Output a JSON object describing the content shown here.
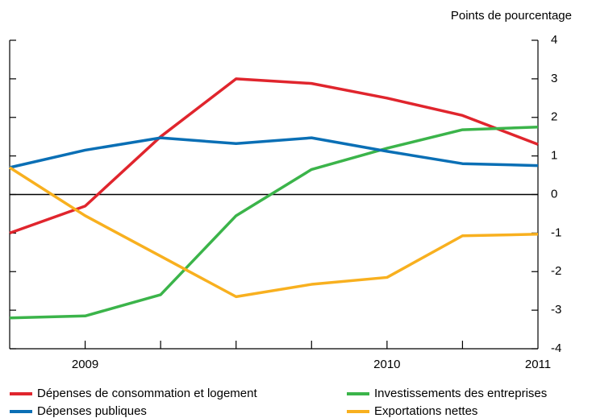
{
  "chart_data": {
    "type": "line",
    "y_axis_label": "Points de pourcentage",
    "categories": [
      null,
      "2009",
      null,
      null,
      null,
      "2010",
      null,
      "2011"
    ],
    "series": [
      {
        "name": "Dépenses de consommation et logement",
        "color": "#e0252d",
        "values": [
          -1.0,
          -0.3,
          1.5,
          3.0,
          2.88,
          2.5,
          2.05,
          1.3
        ]
      },
      {
        "name": "Investissements des entreprises",
        "color": "#3bb44a",
        "values": [
          -3.2,
          -3.15,
          -2.6,
          -0.55,
          0.65,
          1.2,
          1.68,
          1.75
        ]
      },
      {
        "name": "Dépenses publiques",
        "color": "#0a6fb5",
        "values": [
          0.7,
          1.15,
          1.47,
          1.32,
          1.47,
          1.12,
          0.8,
          0.75
        ]
      },
      {
        "name": "Exportations nettes",
        "color": "#f8b01f",
        "values": [
          0.7,
          -0.55,
          -1.6,
          -2.65,
          -2.33,
          -2.15,
          -1.07,
          -1.03
        ]
      }
    ],
    "ylim": [
      -4,
      4
    ],
    "yticks": [
      -4,
      -3,
      -2,
      -1,
      0,
      1,
      2,
      3,
      4
    ]
  }
}
